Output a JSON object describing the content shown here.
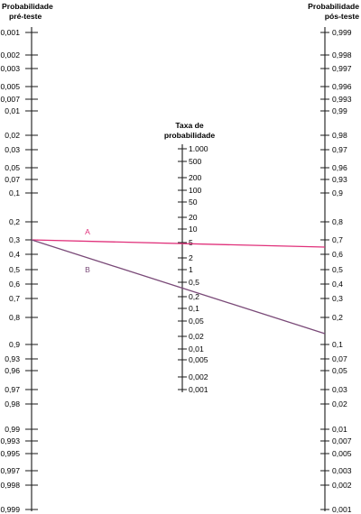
{
  "left_scale": {
    "title_line1": "Probabilidade",
    "title_line2": "pré-teste",
    "labels": [
      "0,001",
      "0,002",
      "0,003",
      "0,005",
      "0,007",
      "0,01",
      "0,02",
      "0,03",
      "0,05",
      "0,07",
      "0,1",
      "0,2",
      "0,3",
      "0,4",
      "0,5",
      "0,6",
      "0,7",
      "0,8",
      "0,9",
      "0,93",
      "0,96",
      "0,97",
      "0,98",
      "0,99",
      "0,993",
      "0,995",
      "0,997",
      "0,998",
      "0,999"
    ]
  },
  "middle_scale": {
    "title_line1": "Taxa de",
    "title_line2": "probabilidade",
    "labels": [
      "1.000",
      "500",
      "200",
      "100",
      "50",
      "20",
      "10",
      "5",
      "2",
      "1",
      "0,5",
      "0,2",
      "0,1",
      "0,05",
      "0,02",
      "0,01",
      "0,005",
      "0,002",
      "0,001"
    ]
  },
  "right_scale": {
    "title_line1": "Probabilidade",
    "title_line2": "pós-teste",
    "labels": [
      "0,999",
      "0,998",
      "0,997",
      "0,996",
      "0,993",
      "0,99",
      "0,98",
      "0,97",
      "0,96",
      "0,93",
      "0,9",
      "0,8",
      "0,7",
      "0,6",
      "0,5",
      "0,4",
      "0,3",
      "0,2",
      "0,1",
      "0,07",
      "0,05",
      "0,03",
      "0,02",
      "0,01",
      "0,007",
      "0,005",
      "0,003",
      "0,002",
      "0,001"
    ]
  },
  "lines": [
    {
      "label": "A",
      "color": "#e0307a"
    },
    {
      "label": "B",
      "color": "#7a4a78"
    }
  ]
}
